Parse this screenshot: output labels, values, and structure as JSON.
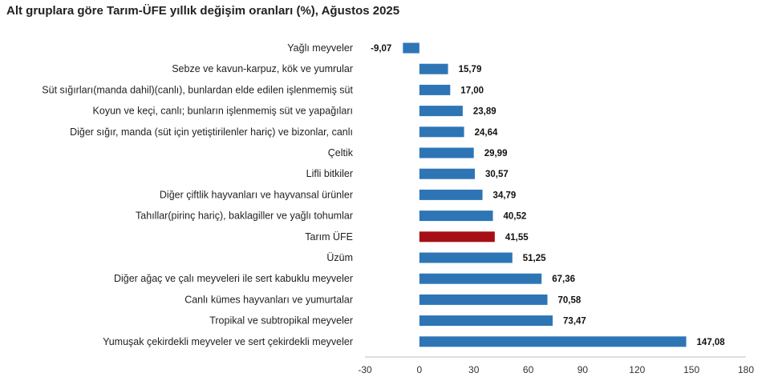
{
  "chart_data": {
    "type": "bar",
    "orientation": "horizontal",
    "title": "Alt gruplara göre Tarım-ÜFE yıllık değişim oranları (%), Ağustos 2025",
    "categories": [
      "Yağlı meyveler",
      "Sebze ve kavun-karpuz, kök ve yumrular",
      "Süt sığırları(manda dahil)(canlı), bunlardan elde edilen işlenmemiş süt",
      "Koyun ve keçi, canlı; bunların işlenmemiş süt ve yapağıları",
      "Diğer sığır, manda (süt için yetiştirilenler hariç) ve bizonlar, canlı",
      "Çeltik",
      "Lifli bitkiler",
      "Diğer çiftlik hayvanları ve hayvansal ürünler",
      "Tahıllar(pirinç hariç), baklagiller ve yağlı tohumlar",
      "Tarım ÜFE",
      "Üzüm",
      "Diğer ağaç ve çalı meyveleri ile sert kabuklu meyveler",
      "Canlı kümes hayvanları ve yumurtalar",
      "Tropikal ve subtropikal meyveler",
      "Yumuşak çekirdekli meyveler ve sert çekirdekli meyveler"
    ],
    "values": [
      -9.07,
      15.79,
      17.0,
      23.89,
      24.64,
      29.99,
      30.57,
      34.79,
      40.52,
      41.55,
      51.25,
      67.36,
      70.58,
      73.47,
      147.08
    ],
    "value_labels": [
      "-9,07",
      "15,79",
      "17,00",
      "23,89",
      "24,64",
      "29,99",
      "30,57",
      "34,79",
      "40,52",
      "41,55",
      "51,25",
      "67,36",
      "70,58",
      "73,47",
      "147,08"
    ],
    "highlight_category": "Tarım ÜFE",
    "xlim": [
      -30,
      180
    ],
    "x_ticks": [
      "-30",
      "0",
      "30",
      "60",
      "90",
      "120",
      "150",
      "180"
    ],
    "colors": {
      "bar": "#2e75b6",
      "highlight": "#a50f15"
    },
    "grid": false
  }
}
